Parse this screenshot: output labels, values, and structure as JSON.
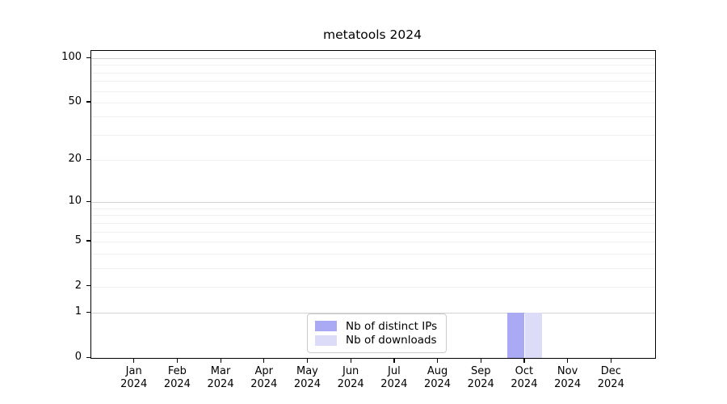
{
  "figure": {
    "background_color": "#ffffff",
    "axis_color": "#000000",
    "major_grid_color": "#d2d2d2",
    "minor_grid_color": "#f0f0f0"
  },
  "chart_data": {
    "type": "bar",
    "title": "metatools 2024",
    "xlabel": "",
    "ylabel": "",
    "categories": [
      "Jan 2024",
      "Feb 2024",
      "Mar 2024",
      "Apr 2024",
      "May 2024",
      "Jun 2024",
      "Jul 2024",
      "Aug 2024",
      "Sep 2024",
      "Oct 2024",
      "Nov 2024",
      "Dec 2024"
    ],
    "series": [
      {
        "name": "Nb of distinct IPs",
        "color": "#a9a9f4",
        "values": [
          0,
          0,
          0,
          0,
          0,
          0,
          0,
          0,
          0,
          1,
          0,
          0
        ]
      },
      {
        "name": "Nb of downloads",
        "color": "#dcdcf8",
        "values": [
          0,
          0,
          0,
          0,
          0,
          0,
          0,
          0,
          0,
          1,
          0,
          0
        ]
      }
    ],
    "yscale": "log1p",
    "ylim": [
      0,
      112
    ],
    "yticks": [
      0,
      1,
      2,
      5,
      10,
      20,
      50,
      100
    ],
    "major_gridlines": [
      1,
      10,
      100
    ],
    "minor_gridlines": [
      2,
      3,
      4,
      5,
      6,
      7,
      8,
      9,
      20,
      30,
      40,
      50,
      60,
      70,
      80,
      90
    ],
    "grid": "on",
    "legend_position": "lower center inside"
  }
}
